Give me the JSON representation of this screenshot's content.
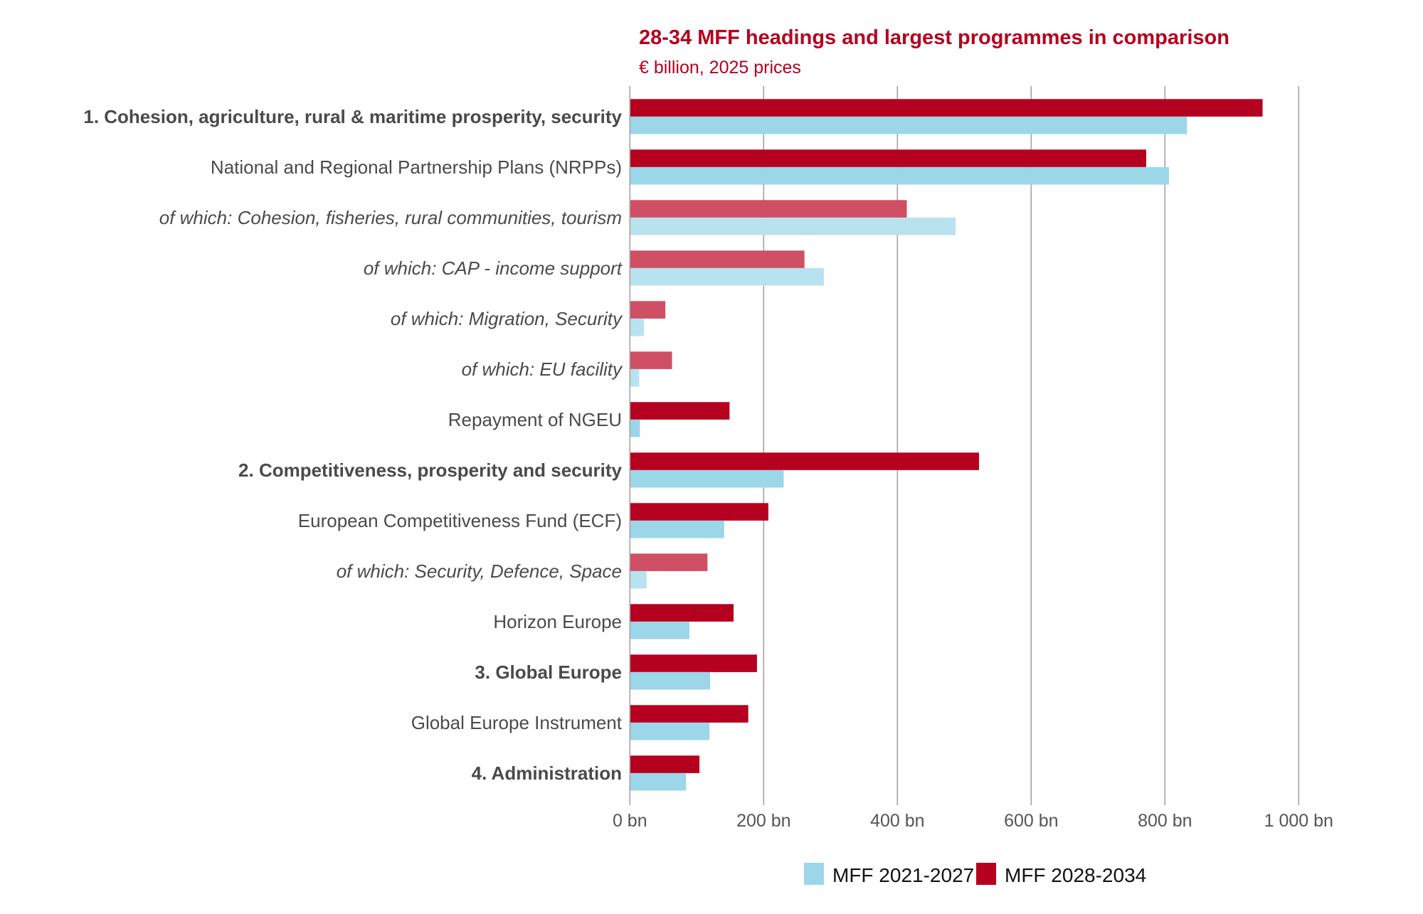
{
  "chart_data": {
    "type": "bar",
    "orientation": "horizontal",
    "title": "28-34 MFF headings and largest programmes in comparison",
    "subtitle": "€ billion, 2025 prices",
    "xlabel": "",
    "ylabel": "",
    "xlim": [
      0,
      1000
    ],
    "grid": true,
    "x_ticks": [
      0,
      200,
      400,
      600,
      800,
      1000
    ],
    "x_tick_labels": [
      "0 bn",
      "200 bn",
      "400 bn",
      "600 bn",
      "800 bn",
      "1 000 bn"
    ],
    "legend_position": "bottom-right",
    "categories": [
      "1. Cohesion, agriculture, rural & maritime prosperity, security",
      "National and Regional Partnership Plans (NRPPs)",
      "of which: Cohesion, fisheries, rural communities, tourism",
      "of which: CAP - income support",
      "of which: Migration, Security",
      "of which: EU facility",
      "Repayment of NGEU",
      "2. Competitiveness, prosperity and security",
      "European Competitiveness Fund (ECF)",
      "of which: Security, Defence, Space",
      "Horizon Europe",
      "3. Global Europe",
      "Global Europe Instrument",
      "4. Administration"
    ],
    "category_styles": [
      "heading",
      "programme",
      "sub",
      "sub",
      "sub",
      "sub",
      "programme",
      "heading",
      "programme",
      "sub",
      "programme",
      "heading",
      "programme",
      "heading"
    ],
    "series": [
      {
        "name": "MFF 2028-2034",
        "color": "#b5001f",
        "sub_color": "#cf4f64",
        "values": [
          946,
          772,
          414,
          261,
          53,
          63,
          149,
          522,
          207,
          116,
          155,
          190,
          177,
          104
        ]
      },
      {
        "name": "MFF 2021-2027",
        "color": "#9cd6e9",
        "sub_color": "#b9e2ef",
        "values": [
          833,
          806,
          487,
          290,
          21,
          14,
          15,
          230,
          141,
          25,
          89,
          120,
          119,
          84
        ]
      }
    ],
    "legend": [
      {
        "label": "MFF 2021-2027",
        "color": "#9cd6e9"
      },
      {
        "label": "MFF 2028-2034",
        "color": "#b5001f"
      }
    ]
  }
}
